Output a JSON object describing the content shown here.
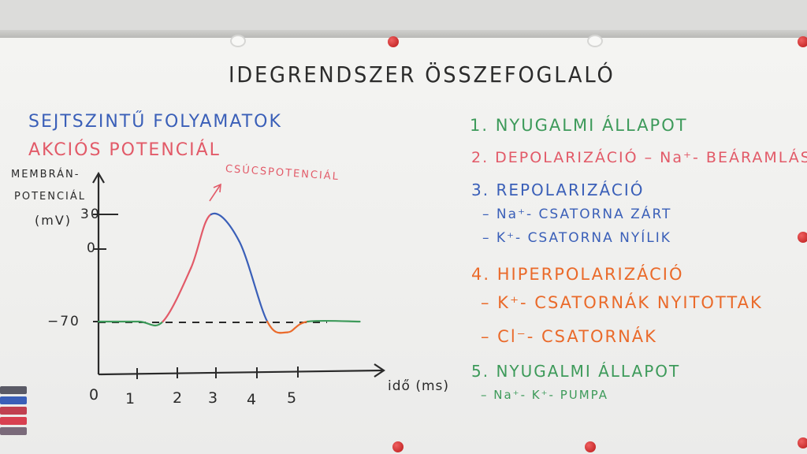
{
  "board": {
    "title": "IDEGRENDSZER ÖSSZEFOGLALÓ",
    "section": "SEJTSZINTŰ FOLYAMATOK",
    "subtitle": "AKCIÓS POTENCIÁL",
    "y_label_line1": "MEMBRÁN-",
    "y_label_line2": "POTENCIÁL",
    "y_label_line3": "(mV)",
    "y_ticks": [
      "30",
      "0",
      "−70"
    ],
    "x_ticks": [
      "0",
      "1",
      "2",
      "3",
      "4",
      "5"
    ],
    "x_label": "idő (ms)",
    "peak_label": "CSÚCSPOTENCIÁL"
  },
  "list": [
    {
      "text": "1. NYUGALMI ÁLLAPOT",
      "color": "#3d9a5a"
    },
    {
      "text": "2. DEPOLARIZÁCIÓ – Na⁺- BEÁRAMLÁS",
      "color": "#e25a68"
    },
    {
      "text": "3. REPOLARIZÁCIÓ",
      "color": "#3a5fb8"
    },
    {
      "text": "– Na⁺- CSATORNA ZÁRT",
      "color": "#3a5fb8"
    },
    {
      "text": "– K⁺- CSATORNA NYÍLIK",
      "color": "#3a5fb8"
    },
    {
      "text": "4. HIPERPOLARIZÁCIÓ",
      "color": "#ea6a2a"
    },
    {
      "text": "– K⁺- CSATORNÁK NYITOTTAK",
      "color": "#ea6a2a"
    },
    {
      "text": "– Cl⁻- CSATORNÁK",
      "color": "#ea6a2a"
    },
    {
      "text": "5. NYUGALMI ÁLLAPOT",
      "color": "#3d9a5a"
    },
    {
      "text": "– Na⁺- K⁺- PUMPA",
      "color": "#3d9a5a"
    }
  ],
  "colors": {
    "resting": "#3d9a5a",
    "depolarization": "#e25a68",
    "repolarization": "#3a5fb8",
    "hyperpolarization": "#ea6a2a",
    "ink": "#2a2a2a"
  },
  "chart_data": {
    "type": "line",
    "x": [
      0,
      1,
      1.6,
      2.3,
      2.8,
      3.5,
      4.2,
      4.7,
      5.2,
      6.5
    ],
    "series": [
      {
        "values": [
          -70,
          -70,
          -70,
          -20,
          30,
          5,
          -70,
          -80,
          -70,
          -70
        ]
      }
    ],
    "xlabel": "idő (ms)",
    "ylabel": "MEMBRÁN- POTENCIÁL (mV)",
    "xlim": [
      0,
      6.5
    ],
    "ylim": [
      -90,
      40
    ],
    "threshold_line": -70
  }
}
